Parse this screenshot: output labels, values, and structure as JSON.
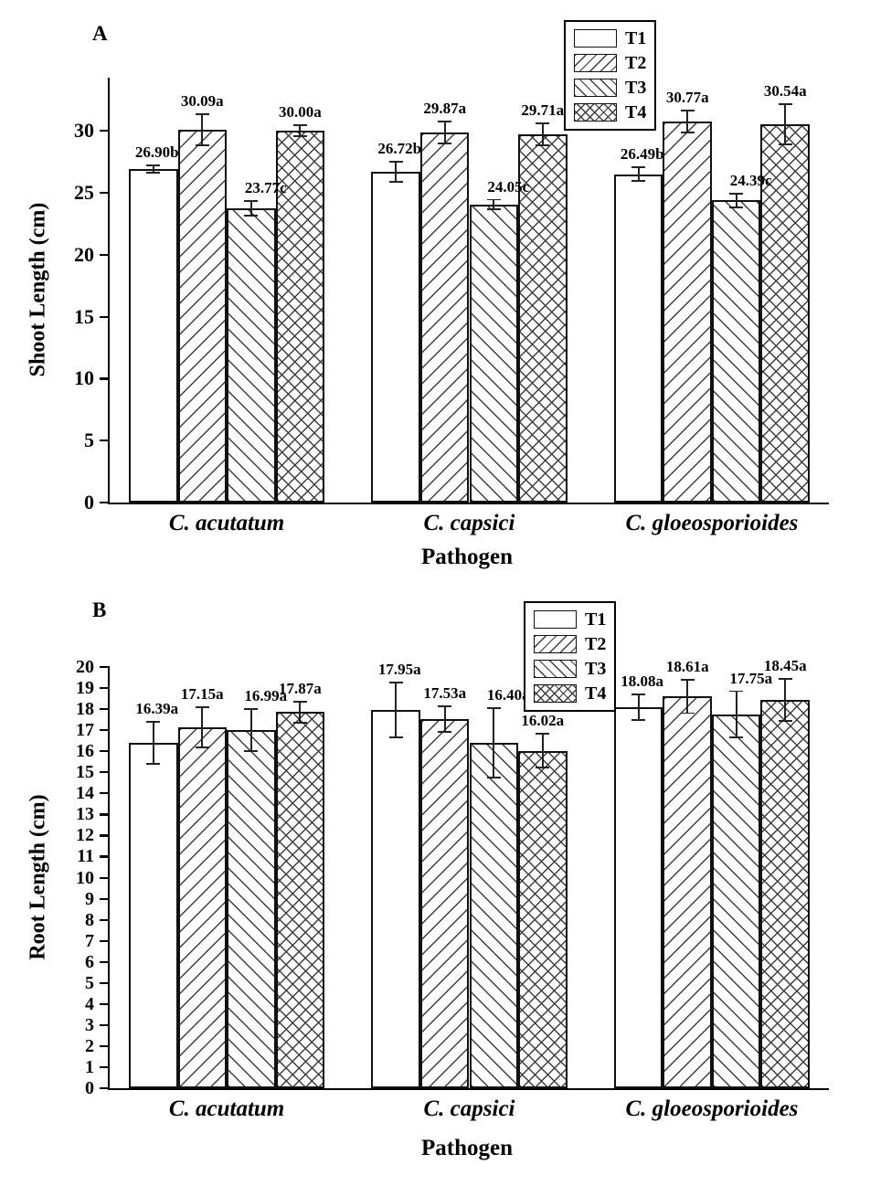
{
  "colors": {
    "ink": "#000000",
    "hatch": "#3d3d3d",
    "background": "#ffffff"
  },
  "chart_data": [
    {
      "type": "bar",
      "panel": "A",
      "ylabel": "Shoot Length (cm)",
      "xlabel": "Pathogen",
      "ylim": [
        0,
        34.3
      ],
      "yticks": [
        0,
        5,
        10,
        15,
        20,
        25,
        30
      ],
      "grid": false,
      "legend_position": "top-right-inside",
      "categories": [
        "C. acutatum",
        "C. capsici",
        "C. gloeosporioides"
      ],
      "series": [
        {
          "name": "T1",
          "pattern": "none",
          "values": [
            26.9,
            26.72,
            26.49
          ],
          "errors": [
            0.3,
            0.8,
            0.55
          ],
          "point_labels": [
            "26.90b",
            "26.72b",
            "26.49b"
          ]
        },
        {
          "name": "T2",
          "pattern": "diag-up",
          "values": [
            30.09,
            29.87,
            30.77
          ],
          "errors": [
            1.25,
            0.9,
            0.9
          ],
          "point_labels": [
            "30.09a",
            "29.87a",
            "30.77a"
          ]
        },
        {
          "name": "T3",
          "pattern": "diag-down",
          "values": [
            23.77,
            24.05,
            24.39
          ],
          "errors": [
            0.6,
            0.4,
            0.55
          ],
          "point_labels": [
            "23.77c",
            "24.05c",
            "24.39c"
          ]
        },
        {
          "name": "T4",
          "pattern": "cross",
          "values": [
            30.0,
            29.71,
            30.54
          ],
          "errors": [
            0.45,
            0.9,
            1.6
          ],
          "point_labels": [
            "30.00a",
            "29.71a",
            "30.54a"
          ]
        }
      ]
    },
    {
      "type": "bar",
      "panel": "B",
      "ylabel": "Root Length (cm)",
      "xlabel": "Pathogen",
      "ylim": [
        0,
        20
      ],
      "yticks": [
        0,
        1,
        2,
        3,
        4,
        5,
        6,
        7,
        8,
        9,
        10,
        11,
        12,
        13,
        14,
        15,
        16,
        17,
        18,
        19,
        20
      ],
      "grid": false,
      "legend_position": "top-right-inside",
      "categories": [
        "C. acutatum",
        "C. capsici",
        "C. gloeosporioides"
      ],
      "series": [
        {
          "name": "T1",
          "pattern": "none",
          "values": [
            16.39,
            17.95,
            18.08
          ],
          "errors": [
            1.0,
            1.3,
            0.6
          ],
          "point_labels": [
            "16.39a",
            "17.95a",
            "18.08a"
          ]
        },
        {
          "name": "T2",
          "pattern": "diag-up",
          "values": [
            17.15,
            17.53,
            18.61
          ],
          "errors": [
            0.95,
            0.6,
            0.8
          ],
          "point_labels": [
            "17.15a",
            "17.53a",
            "18.61a"
          ]
        },
        {
          "name": "T3",
          "pattern": "diag-down",
          "values": [
            16.99,
            16.4,
            17.75
          ],
          "errors": [
            1.0,
            1.65,
            1.1
          ],
          "point_labels": [
            "16.99a",
            "16.40a",
            "17.75a"
          ]
        },
        {
          "name": "T4",
          "pattern": "cross",
          "values": [
            17.87,
            16.02,
            18.45
          ],
          "errors": [
            0.5,
            0.8,
            1.0
          ],
          "point_labels": [
            "17.87a",
            "16.02a",
            "18.45a"
          ]
        }
      ]
    }
  ]
}
